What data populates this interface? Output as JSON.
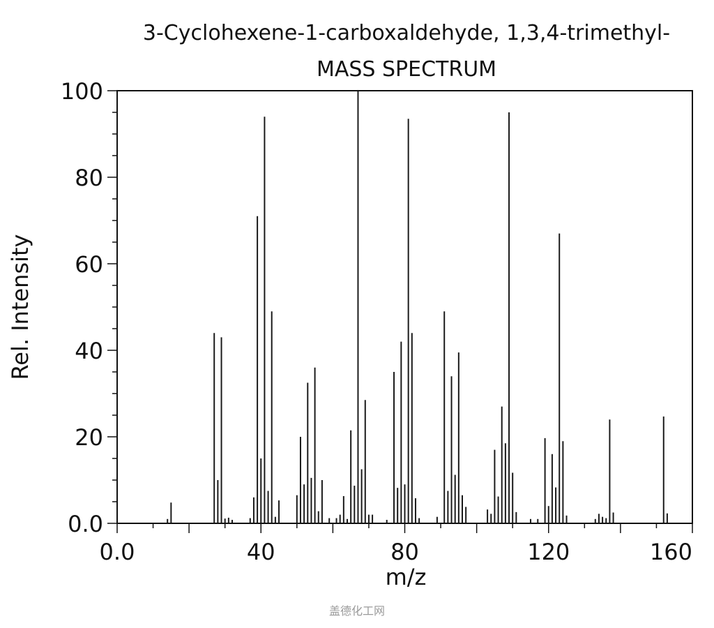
{
  "chart_data": {
    "type": "bar",
    "title": "3-Cyclohexene-1-carboxaldehyde, 1,3,4-trimethyl-",
    "subtitle": "MASS SPECTRUM",
    "xlabel": "m/z",
    "ylabel": "Rel. Intensity",
    "xlim": [
      0,
      160
    ],
    "ylim": [
      0,
      100
    ],
    "x_ticks": [
      "0.0",
      "40",
      "80",
      "120",
      "160"
    ],
    "x_tick_values": [
      0,
      40,
      80,
      120,
      160
    ],
    "y_ticks": [
      "0.0",
      "20",
      "40",
      "60",
      "80",
      "100"
    ],
    "y_tick_values": [
      0,
      20,
      40,
      60,
      80,
      100
    ],
    "grid": false,
    "bar_color": "#1a1a1a",
    "peaks": [
      {
        "x": 14,
        "y": 1.0
      },
      {
        "x": 15,
        "y": 4.8
      },
      {
        "x": 27,
        "y": 44
      },
      {
        "x": 28,
        "y": 10
      },
      {
        "x": 29,
        "y": 43
      },
      {
        "x": 30,
        "y": 1.1
      },
      {
        "x": 31,
        "y": 1.3
      },
      {
        "x": 32,
        "y": 0.8
      },
      {
        "x": 37,
        "y": 1.2
      },
      {
        "x": 38,
        "y": 6
      },
      {
        "x": 39,
        "y": 71
      },
      {
        "x": 40,
        "y": 15
      },
      {
        "x": 41,
        "y": 94
      },
      {
        "x": 42,
        "y": 7.5
      },
      {
        "x": 43,
        "y": 49
      },
      {
        "x": 44,
        "y": 1.5
      },
      {
        "x": 45,
        "y": 5.3
      },
      {
        "x": 50,
        "y": 6.5
      },
      {
        "x": 51,
        "y": 20
      },
      {
        "x": 52,
        "y": 9
      },
      {
        "x": 53,
        "y": 32.5
      },
      {
        "x": 54,
        "y": 10.5
      },
      {
        "x": 55,
        "y": 36
      },
      {
        "x": 56,
        "y": 2.8
      },
      {
        "x": 57,
        "y": 10
      },
      {
        "x": 59,
        "y": 1.2
      },
      {
        "x": 61,
        "y": 1.2
      },
      {
        "x": 62,
        "y": 2
      },
      {
        "x": 63,
        "y": 6.3
      },
      {
        "x": 64,
        "y": 1
      },
      {
        "x": 65,
        "y": 21.5
      },
      {
        "x": 66,
        "y": 8.7
      },
      {
        "x": 67,
        "y": 100
      },
      {
        "x": 68,
        "y": 12.5
      },
      {
        "x": 69,
        "y": 28.5
      },
      {
        "x": 70,
        "y": 2
      },
      {
        "x": 71,
        "y": 2
      },
      {
        "x": 75,
        "y": 0.8
      },
      {
        "x": 77,
        "y": 35
      },
      {
        "x": 78,
        "y": 8.2
      },
      {
        "x": 79,
        "y": 42
      },
      {
        "x": 80,
        "y": 9
      },
      {
        "x": 81,
        "y": 93.5
      },
      {
        "x": 82,
        "y": 44
      },
      {
        "x": 83,
        "y": 5.8
      },
      {
        "x": 84,
        "y": 1.2
      },
      {
        "x": 89,
        "y": 1.5
      },
      {
        "x": 91,
        "y": 49
      },
      {
        "x": 92,
        "y": 7.5
      },
      {
        "x": 93,
        "y": 34
      },
      {
        "x": 94,
        "y": 11.2
      },
      {
        "x": 95,
        "y": 39.5
      },
      {
        "x": 96,
        "y": 6.5
      },
      {
        "x": 97,
        "y": 3.8
      },
      {
        "x": 103,
        "y": 3.2
      },
      {
        "x": 104,
        "y": 2.2
      },
      {
        "x": 105,
        "y": 17
      },
      {
        "x": 106,
        "y": 6.2
      },
      {
        "x": 107,
        "y": 27
      },
      {
        "x": 108,
        "y": 18.5
      },
      {
        "x": 109,
        "y": 95
      },
      {
        "x": 110,
        "y": 11.7
      },
      {
        "x": 111,
        "y": 2.6
      },
      {
        "x": 115,
        "y": 1
      },
      {
        "x": 117,
        "y": 1
      },
      {
        "x": 119,
        "y": 19.7
      },
      {
        "x": 120,
        "y": 4
      },
      {
        "x": 121,
        "y": 16
      },
      {
        "x": 122,
        "y": 8.3
      },
      {
        "x": 123,
        "y": 67
      },
      {
        "x": 124,
        "y": 19
      },
      {
        "x": 125,
        "y": 1.8
      },
      {
        "x": 133,
        "y": 1
      },
      {
        "x": 134,
        "y": 2.2
      },
      {
        "x": 135,
        "y": 1.5
      },
      {
        "x": 136,
        "y": 1.2
      },
      {
        "x": 137,
        "y": 24
      },
      {
        "x": 138,
        "y": 2.5
      },
      {
        "x": 152,
        "y": 24.7
      },
      {
        "x": 153,
        "y": 2.3
      }
    ]
  },
  "watermark": "盖德化工网"
}
